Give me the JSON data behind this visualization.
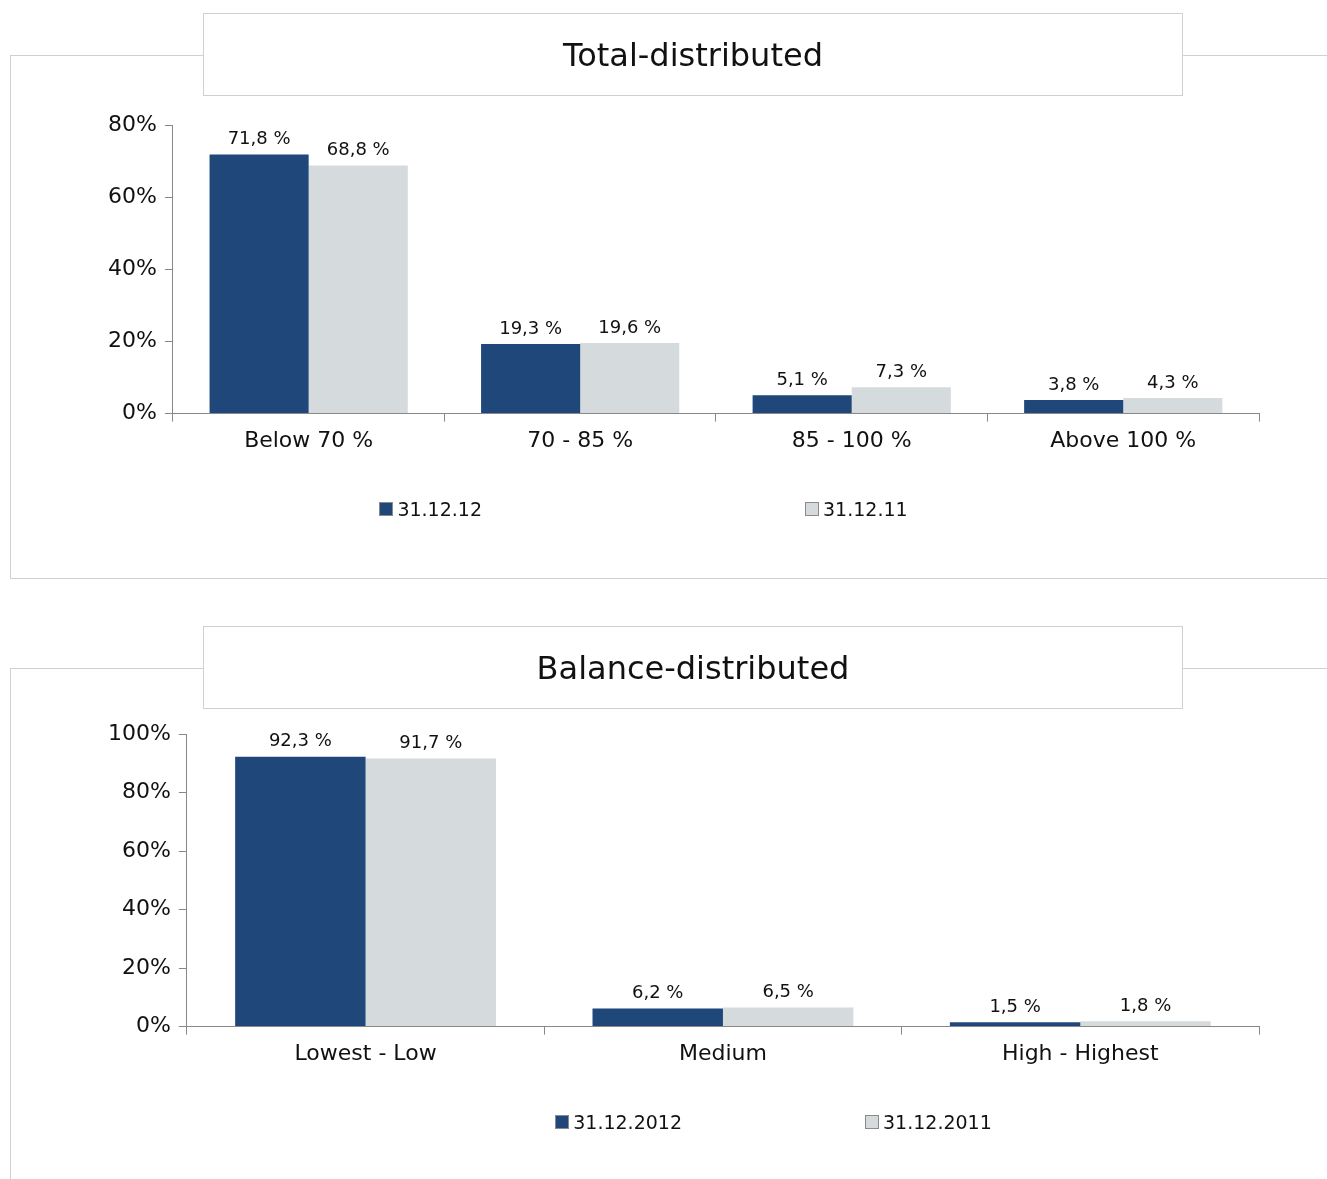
{
  "chart_data": [
    {
      "type": "bar",
      "title": "Total-distributed",
      "categories": [
        "Below 70 %",
        "70 - 85 %",
        "85 - 100 %",
        "Above 100 %"
      ],
      "series": [
        {
          "name": "31.12.12",
          "color": "#1f477a",
          "values": [
            71.8,
            19.3,
            5.1,
            3.8
          ],
          "value_labels": [
            "71,8 %",
            "19,3 %",
            "5,1 %",
            "3,8 %"
          ]
        },
        {
          "name": "31.12.11",
          "color": "#d5dadd",
          "values": [
            68.8,
            19.6,
            7.3,
            4.3
          ],
          "value_labels": [
            "68,8 %",
            "19,6 %",
            "7,3 %",
            "4,3 %"
          ]
        }
      ],
      "ylim": [
        0,
        80
      ],
      "yticks": [
        {
          "value": 0,
          "label": "0%"
        },
        {
          "value": 20,
          "label": "20%"
        },
        {
          "value": 40,
          "label": "40%"
        },
        {
          "value": 60,
          "label": "60%"
        },
        {
          "value": 80,
          "label": "80%"
        }
      ],
      "legend": "bottom",
      "grid": false
    },
    {
      "type": "bar",
      "title": "Balance-distributed",
      "categories": [
        "Lowest - Low",
        "Medium",
        "High - Highest"
      ],
      "series": [
        {
          "name": "31.12.2012",
          "color": "#1f477a",
          "values": [
            92.3,
            6.2,
            1.5
          ],
          "value_labels": [
            "92,3 %",
            "6,2 %",
            "1,5 %"
          ]
        },
        {
          "name": "31.12.2011",
          "color": "#d5dadd",
          "values": [
            91.7,
            6.5,
            1.8
          ],
          "value_labels": [
            "91,7 %",
            "6,5 %",
            "1,8 %"
          ]
        }
      ],
      "ylim": [
        0,
        100
      ],
      "yticks": [
        {
          "value": 0,
          "label": "0%"
        },
        {
          "value": 20,
          "label": "20%"
        },
        {
          "value": 40,
          "label": "40%"
        },
        {
          "value": 60,
          "label": "60%"
        },
        {
          "value": 80,
          "label": "80%"
        },
        {
          "value": 100,
          "label": "100%"
        }
      ],
      "legend": "bottom",
      "grid": false
    }
  ]
}
